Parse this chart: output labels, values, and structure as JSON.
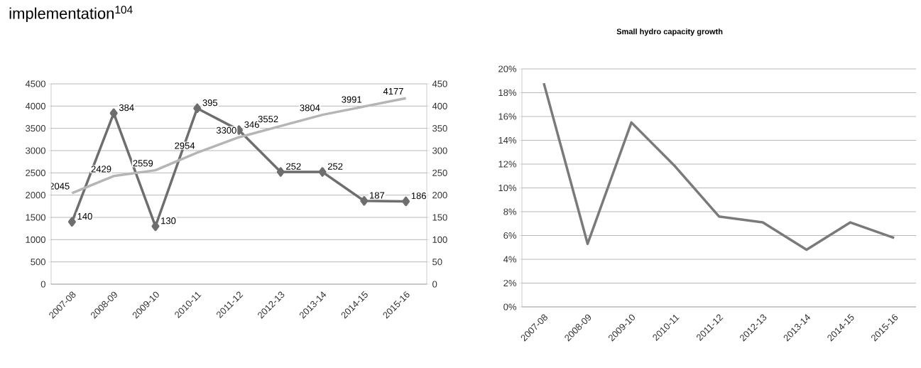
{
  "chart_data": [
    {
      "type": "line",
      "title": "implementation$^{104}$",
      "categories": [
        "2007-08",
        "2008-09",
        "2009-10",
        "2010-11",
        "2011-12",
        "2012-13",
        "2013-14",
        "2014-15",
        "2015-16"
      ],
      "series": [
        {
          "color": "#b5b5b5",
          "values": [
            2045,
            2429,
            2559,
            2954,
            3300,
            3552,
            3804,
            3991,
            4177
          ]
        },
        {
          "color": "#6e6e6e",
          "values": [
            140,
            384,
            130,
            395,
            346,
            252,
            252,
            187,
            186
          ],
          "axis": "y2",
          "marker": "diamond"
        }
      ],
      "ylim": [
        0,
        4500
      ],
      "yticks": [
        0,
        500,
        1000,
        1500,
        2000,
        2500,
        3000,
        3500,
        4000,
        4500
      ],
      "y2lim": [
        0,
        450
      ],
      "y2ticks": [
        0,
        50,
        100,
        150,
        200,
        250,
        300,
        350,
        400,
        450
      ],
      "grid": "y",
      "data_labels": true
    },
    {
      "type": "line",
      "title": "Small hydro capacity growth",
      "categories": [
        "2007-08",
        "2008-09",
        "2009-10",
        "2010-11",
        "2011-12",
        "2012-13",
        "2013-14",
        "2014-15",
        "2015-16"
      ],
      "series": [
        {
          "color": "#7a7a7a",
          "values": [
            18.8,
            5.3,
            15.5,
            11.8,
            7.6,
            7.1,
            4.8,
            7.1,
            5.8
          ]
        }
      ],
      "ylim": [
        0,
        20
      ],
      "yticks": [
        {
          "value": 0,
          "label": "0%"
        },
        {
          "value": 2,
          "label": "2%"
        },
        {
          "value": 4,
          "label": "4%"
        },
        {
          "value": 6,
          "label": "6%"
        },
        {
          "value": 8,
          "label": "8%"
        },
        {
          "value": 10,
          "label": "10%"
        },
        {
          "value": 12,
          "label": "12%"
        },
        {
          "value": 14,
          "label": "14%"
        },
        {
          "value": 16,
          "label": "16%"
        },
        {
          "value": 18,
          "label": "18%"
        },
        {
          "value": 20,
          "label": "20%"
        }
      ],
      "grid": "y"
    }
  ]
}
